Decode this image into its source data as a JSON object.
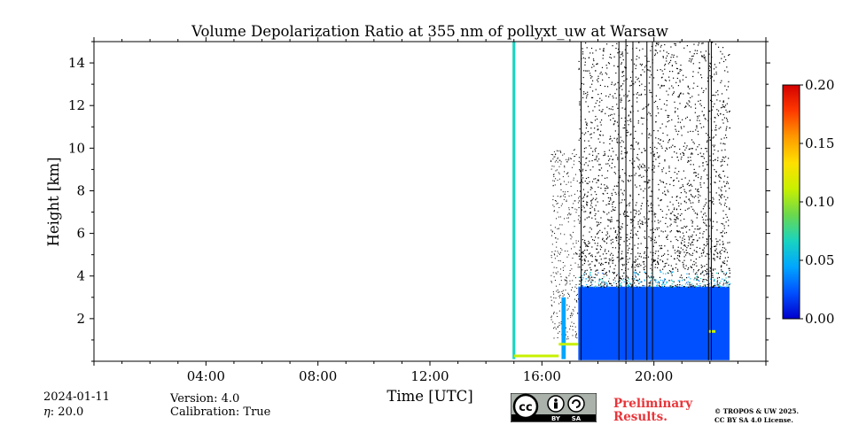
{
  "chart_data": {
    "type": "heatmap",
    "title": "Volume Depolarization Ratio at 355 nm of pollyxt_uw at Warsaw",
    "xlabel": "Time [UTC]",
    "ylabel": "Height [km]",
    "x_unit": "hours UTC",
    "xlim": [
      0,
      24
    ],
    "ylim": [
      0,
      15
    ],
    "x_ticks": [
      {
        "value": 4,
        "label": "04:00"
      },
      {
        "value": 8,
        "label": "08:00"
      },
      {
        "value": 12,
        "label": "12:00"
      },
      {
        "value": 16,
        "label": "16:00"
      },
      {
        "value": 20,
        "label": "20:00"
      }
    ],
    "y_ticks": [
      {
        "value": 2,
        "label": "2"
      },
      {
        "value": 4,
        "label": "4"
      },
      {
        "value": 6,
        "label": "6"
      },
      {
        "value": 8,
        "label": "8"
      },
      {
        "value": 10,
        "label": "10"
      },
      {
        "value": 12,
        "label": "12"
      },
      {
        "value": 14,
        "label": "14"
      }
    ],
    "colorbar": {
      "min": 0.0,
      "max": 0.2,
      "ticks": [
        "0.00",
        "0.05",
        "0.10",
        "0.15",
        "0.20"
      ],
      "colormap": "jet",
      "colors": [
        "#0000cc",
        "#0050ff",
        "#00a6ff",
        "#19d4c0",
        "#6ad84d",
        "#c8f000",
        "#ffe000",
        "#ff9a00",
        "#ff3a00",
        "#d40000"
      ]
    },
    "data_coverage": {
      "measurement_start_h": 14.95,
      "measurement_end_h": 22.7,
      "dense_signal_start_h": 17.3,
      "dense_layer_top_km": 3.5,
      "noise_top_km": 15.0,
      "typical_value": 0.02
    },
    "clouds": [
      {
        "t_start": 14.95,
        "t_end": 15.05,
        "z_bottom": 0.1,
        "z_top": 15.0,
        "value": 0.06
      },
      {
        "t_start": 16.7,
        "t_end": 16.85,
        "z_bottom": 0.1,
        "z_top": 3.0,
        "value": 0.04
      }
    ],
    "boundary_layer_top_segments": [
      {
        "t_start": 15.0,
        "t_end": 16.6,
        "z": 0.25,
        "value": 0.1
      },
      {
        "t_start": 16.6,
        "t_end": 17.3,
        "z": 0.8,
        "value": 0.1
      },
      {
        "t_start": 21.95,
        "t_end": 22.2,
        "z": 1.4,
        "value": 0.1
      }
    ],
    "vertical_artifacts_h": [
      17.4,
      18.75,
      19.0,
      19.25,
      19.75,
      19.95,
      21.95,
      22.05
    ]
  },
  "info": {
    "date": "2024-01-11",
    "eta_symbol": "η",
    "eta_value": ": 20.0",
    "version": "Version: 4.0",
    "calibration": "Calibration: True",
    "preliminary_line1": "Preliminary",
    "preliminary_line2": "Results.",
    "copyright_line1": "© TROPOS & UW 2025.",
    "copyright_line2": "CC BY SA 4.0 License.",
    "license_badge": {
      "cc": "cc",
      "by": "BY",
      "sa": "SA"
    }
  }
}
